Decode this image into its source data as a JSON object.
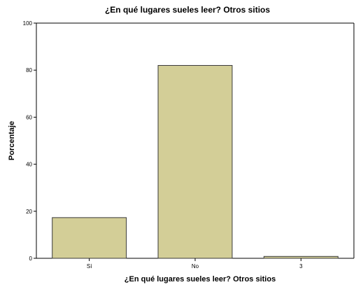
{
  "chart_data": {
    "type": "bar",
    "title": "¿En qué lugares sueles leer? Otros sitios",
    "xlabel": "¿En qué lugares sueles leer? Otros sitios",
    "ylabel": "Porcentaje",
    "categories": [
      "Sí",
      "No",
      "3"
    ],
    "values": [
      17.3,
      82.0,
      0.8
    ],
    "ylim": [
      0,
      100
    ],
    "yticks": [
      "0",
      "20",
      "40",
      "60",
      "80",
      "100"
    ],
    "grid": false,
    "colors": {
      "bar_fill": "#d3ce97",
      "bar_stroke": "#3a3a3a",
      "axis": "#000000",
      "background": "#ffffff"
    }
  }
}
